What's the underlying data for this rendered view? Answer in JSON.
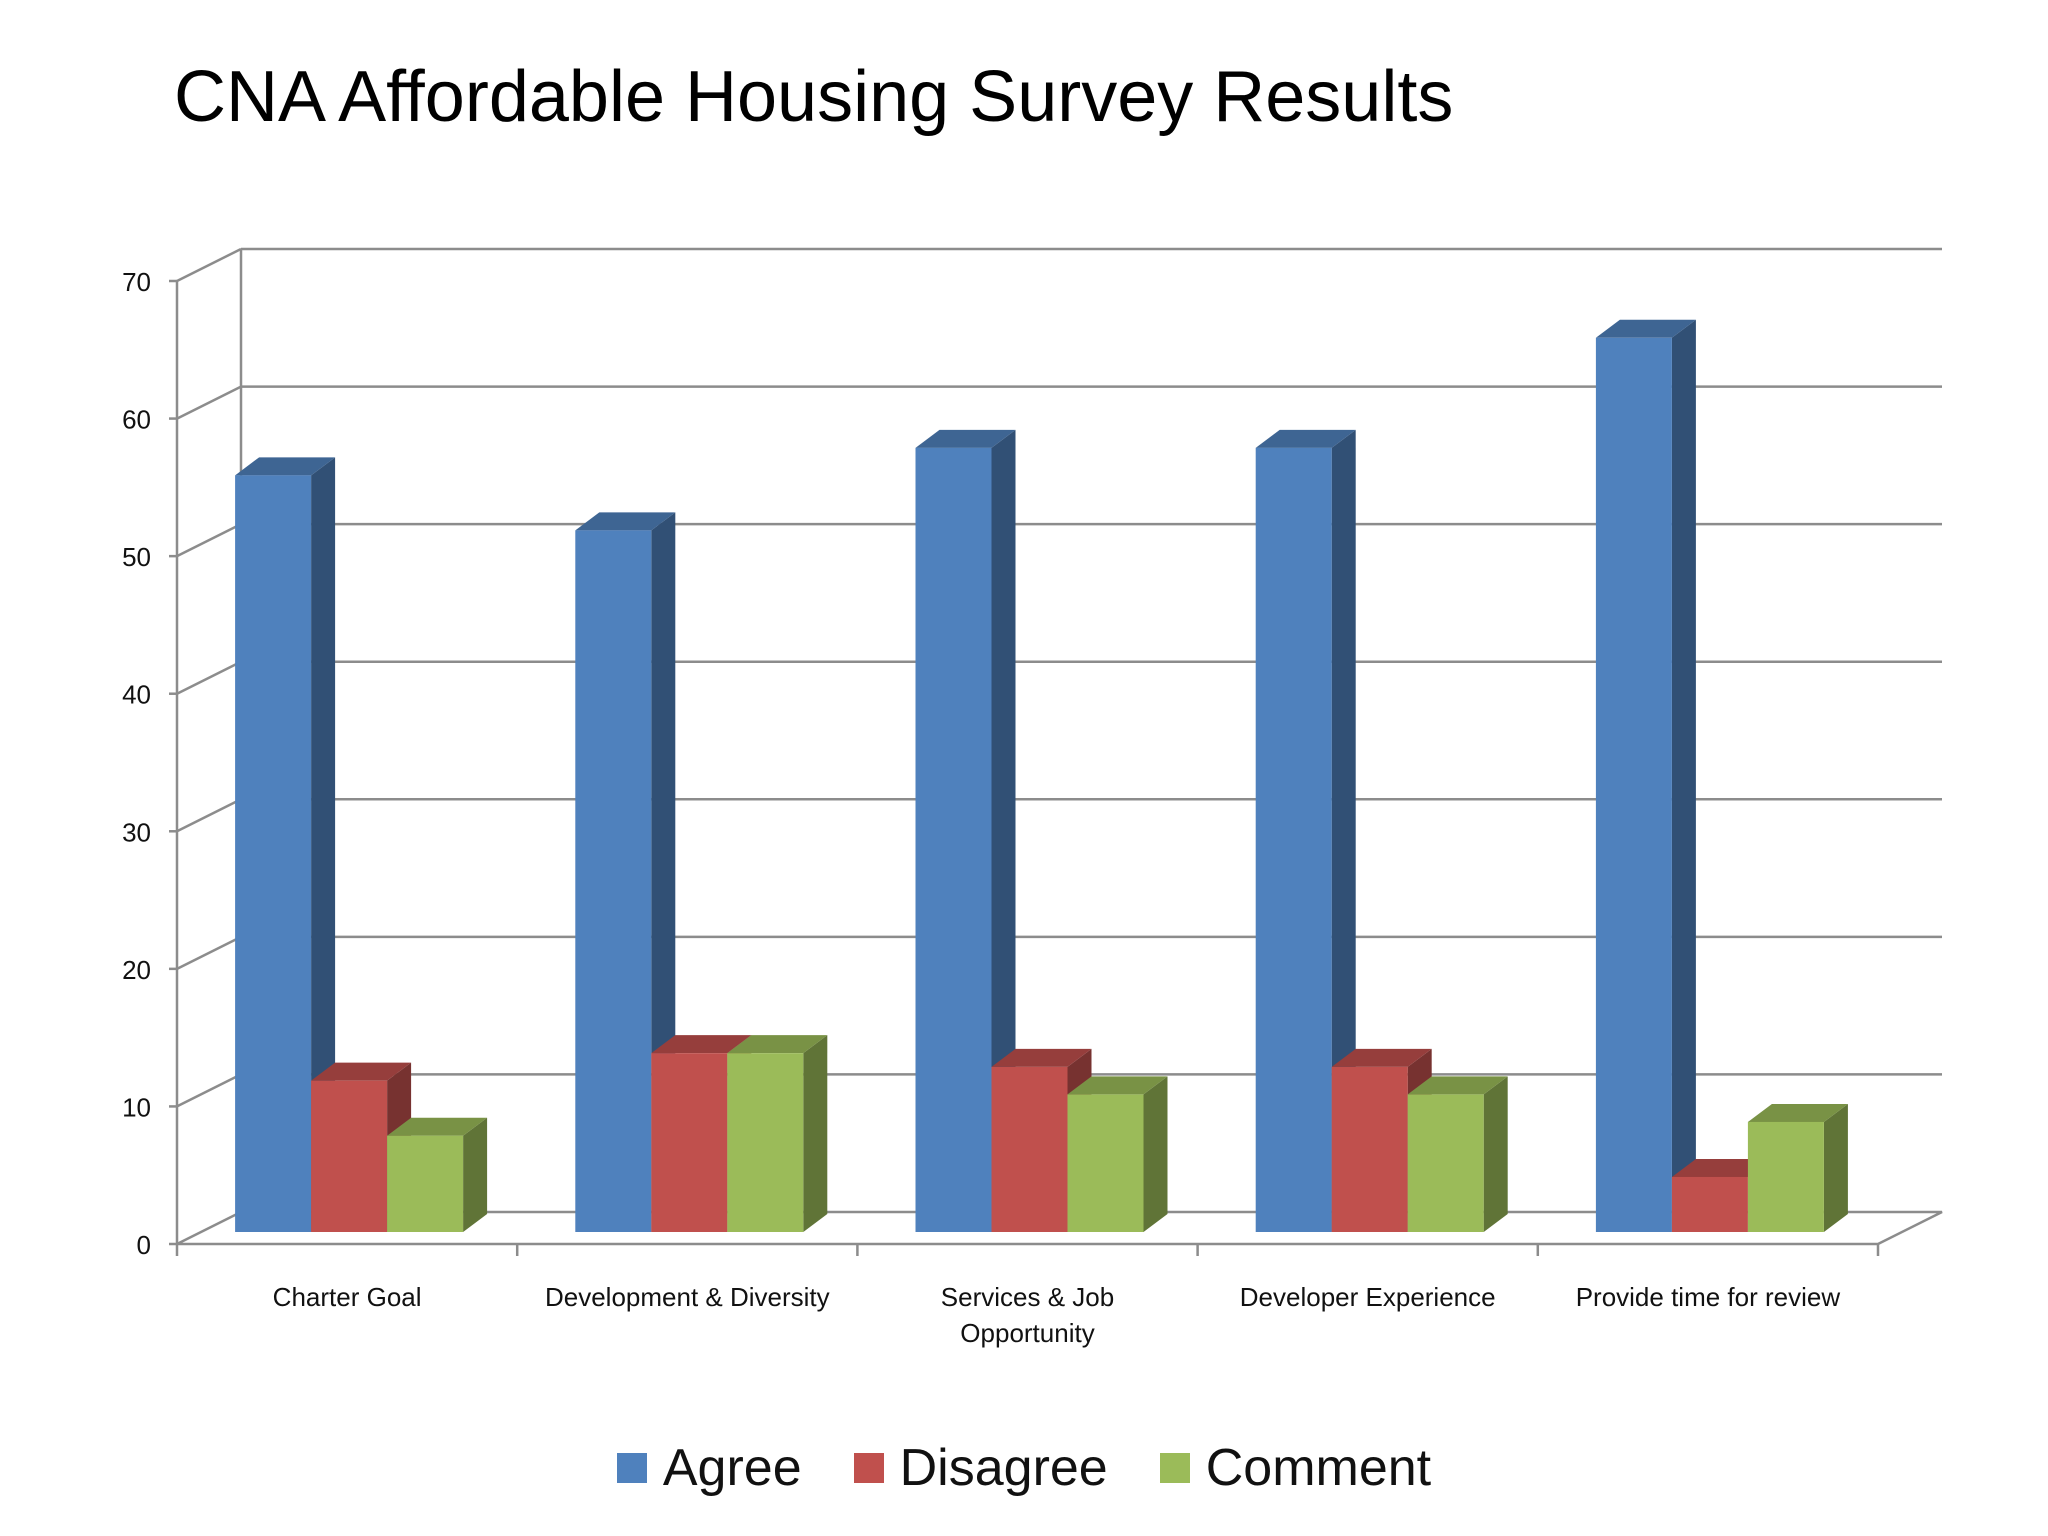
{
  "title": "CNA Affordable Housing Survey Results",
  "chart_data": {
    "type": "bar",
    "three_d": true,
    "categories": [
      "Charter Goal",
      "Development & Diversity",
      "Services & Job Opportunity",
      "Developer Experience",
      "Provide time for review"
    ],
    "series": [
      {
        "name": "Agree",
        "values": [
          55,
          51,
          57,
          57,
          65
        ],
        "color": "#4f81bd"
      },
      {
        "name": "Disagree",
        "values": [
          11,
          13,
          12,
          12,
          4
        ],
        "color": "#c0504d"
      },
      {
        "name": "Comment",
        "values": [
          7,
          13,
          10,
          10,
          8
        ],
        "color": "#9bbb59"
      }
    ],
    "ylim": [
      0,
      70
    ],
    "yticks": [
      0,
      10,
      20,
      30,
      40,
      50,
      60,
      70
    ],
    "grid": true,
    "legend_position": "bottom"
  }
}
